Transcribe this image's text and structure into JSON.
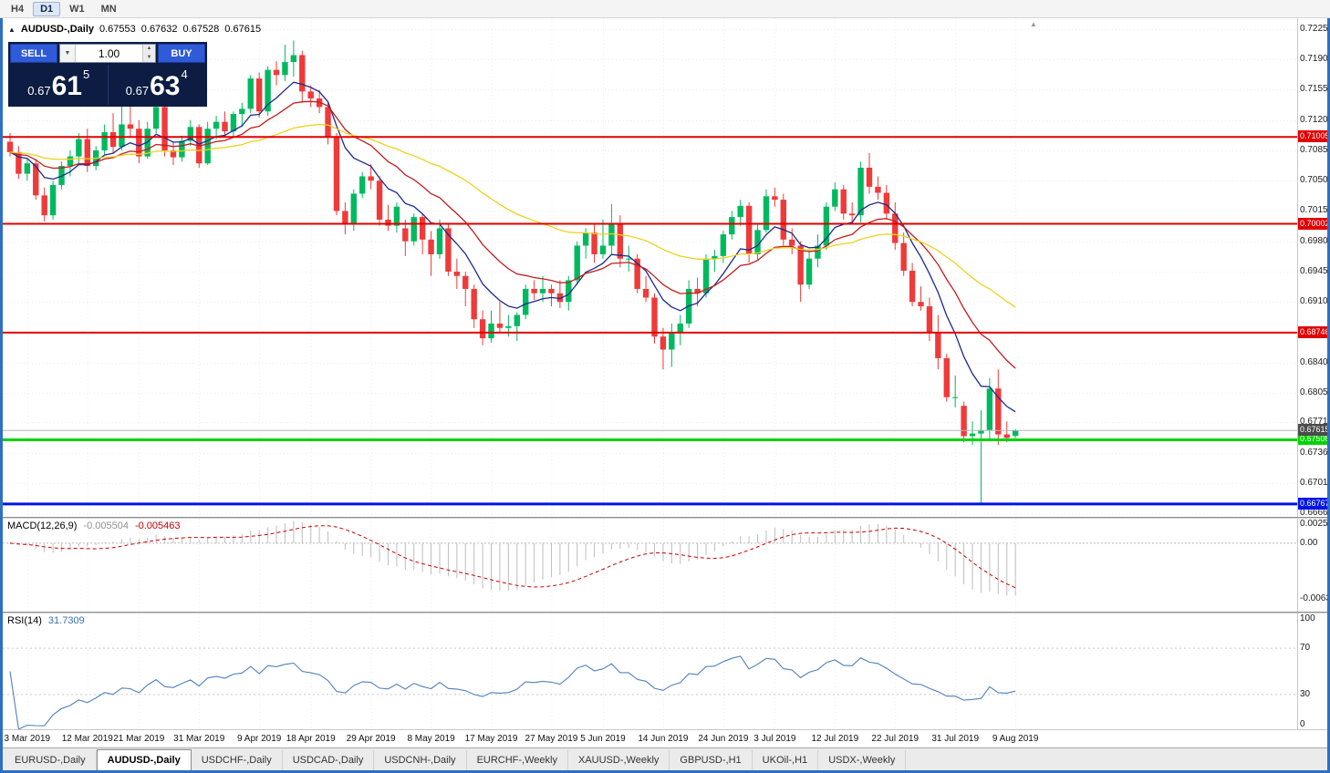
{
  "ui_colors": {
    "frame": "#2e6fc4",
    "trade_panel_bg": "#0c1c42",
    "button_blue": "#2f5bd8",
    "bull": "#00b95f",
    "bear": "#ef3a3a",
    "ma_fast": "#1b2a8f",
    "ma_mid": "#c21d1d",
    "ma_slow": "#efd11c"
  },
  "icons": {
    "collapse": "▲",
    "dropdown": "▼",
    "spin_up": "▲",
    "spin_down": "▼",
    "shift_marker": "▲"
  },
  "toolbar": {
    "timeframes": [
      "H4",
      "D1",
      "W1",
      "MN"
    ],
    "active": "D1"
  },
  "chart_header": {
    "symbol": "AUDUSD-,Daily",
    "open": "0.67553",
    "high": "0.67632",
    "low": "0.67528",
    "close": "0.67615"
  },
  "trade_panel": {
    "sell_label": "SELL",
    "buy_label": "BUY",
    "volume": "1.00",
    "sell_price": {
      "prefix": "0.67",
      "big": "61",
      "sup": "5"
    },
    "buy_price": {
      "prefix": "0.67",
      "big": "63",
      "sup": "4"
    }
  },
  "price_axis": {
    "labels": [
      "0.72250",
      "0.71900",
      "0.71550",
      "0.71200",
      "0.70850",
      "0.70500",
      "0.70150",
      "0.69800",
      "0.69450",
      "0.69100",
      "0.68750",
      "0.68400",
      "0.68050",
      "0.67710",
      "0.67360",
      "0.67010",
      "0.66660"
    ]
  },
  "current_price": {
    "value": 0.67615,
    "label": "0.67615",
    "line_color": "#b5b5b5",
    "badge_color": "#4b4b4b"
  },
  "levels": [
    {
      "name": "resistance-line-1",
      "price": 0.71005,
      "label": "0.71005",
      "color": "#e00000",
      "width": 2
    },
    {
      "name": "resistance-line-2",
      "price": 0.70002,
      "label": "0.70002",
      "color": "#e00000",
      "width": 2
    },
    {
      "name": "support-line-1",
      "price": 0.68746,
      "label": "0.68746",
      "color": "#e00000",
      "width": 2
    },
    {
      "name": "support-line-2",
      "price": 0.67508,
      "label": "0.67508",
      "color": "#00d400",
      "width": 3
    },
    {
      "name": "support-line-3",
      "price": 0.66767,
      "label": "0.66767",
      "color": "#0014e6",
      "width": 3
    }
  ],
  "macd": {
    "title": "MACD(12,26,9)",
    "value_main": "-0.005504",
    "value_signal": "-0.005463",
    "axis_labels": [
      "0.002574",
      "0.00",
      "-0.00632"
    ],
    "ylim": [
      -0.00777,
      0.00278
    ],
    "fast": 12,
    "slow": 26,
    "signal": 9,
    "hist_color": "#bdbdbd",
    "signal_color": "#cc0000"
  },
  "rsi": {
    "title": "RSI(14)",
    "value": "31.7309",
    "period": 14,
    "axis_labels": [
      "100",
      "70",
      "30",
      "0"
    ],
    "levels": [
      70,
      30
    ],
    "color": "#4f81bd"
  },
  "tabs": {
    "active_index": 1,
    "items": [
      "EURUSD-,Daily",
      "AUDUSD-,Daily",
      "USDCHF-,Daily",
      "USDCAD-,Daily",
      "USDCNH-,Daily",
      "EURCHF-,Weekly",
      "XAUUSD-,Weekly",
      "GBPUSD-,H1",
      "UKOil-,H1",
      "USDX-,Weekly"
    ]
  },
  "chart_data": {
    "type": "candlestick",
    "title": "AUDUSD-,Daily",
    "ylim": [
      0.66618,
      0.72376
    ],
    "grid": true,
    "colors": {
      "bull": "#00b95f",
      "bear": "#ef3a3a"
    },
    "ma": [
      {
        "name": "ma-fast-blue",
        "period": 8,
        "color": "#1b2a8f"
      },
      {
        "name": "ma-mid-red",
        "period": 17,
        "color": "#c21d1d"
      },
      {
        "name": "ma-slow-yellow",
        "period": 45,
        "color": "#efd11c"
      }
    ],
    "xticks": {
      "indices": [
        2,
        9,
        15,
        22,
        29,
        35,
        42,
        49,
        56,
        63,
        69,
        76,
        83,
        89,
        96,
        103,
        110,
        117
      ],
      "labels": [
        "3 Mar 2019",
        "12 Mar 2019",
        "21 Mar 2019",
        "31 Mar 2019",
        "9 Apr 2019",
        "18 Apr 2019",
        "29 Apr 2019",
        "8 May 2019",
        "17 May 2019",
        "27 May 2019",
        "5 Jun 2019",
        "14 Jun 2019",
        "24 Jun 2019",
        "3 Jul 2019",
        "12 Jul 2019",
        "22 Jul 2019",
        "31 Jul 2019",
        "9 Aug 2019"
      ]
    },
    "candles": [
      [
        "2019.03.01",
        0.7095,
        0.7105,
        0.7078,
        0.7083
      ],
      [
        "2019.03.04",
        0.7083,
        0.709,
        0.7052,
        0.7058
      ],
      [
        "2019.03.05",
        0.7058,
        0.7075,
        0.705,
        0.707
      ],
      [
        "2019.03.06",
        0.707,
        0.7075,
        0.7028,
        0.7033
      ],
      [
        "2019.03.07",
        0.7033,
        0.7042,
        0.7003,
        0.701
      ],
      [
        "2019.03.08",
        0.701,
        0.705,
        0.7005,
        0.7045
      ],
      [
        "2019.03.11",
        0.7045,
        0.7072,
        0.704,
        0.7067
      ],
      [
        "2019.03.12",
        0.7067,
        0.7085,
        0.7055,
        0.7078
      ],
      [
        "2019.03.13",
        0.7078,
        0.7105,
        0.707,
        0.7098
      ],
      [
        "2019.03.14",
        0.7098,
        0.711,
        0.706,
        0.7067
      ],
      [
        "2019.03.15",
        0.7067,
        0.709,
        0.7062,
        0.7085
      ],
      [
        "2019.03.18",
        0.7085,
        0.7115,
        0.708,
        0.7106
      ],
      [
        "2019.03.19",
        0.7106,
        0.7128,
        0.7082,
        0.7089
      ],
      [
        "2019.03.20",
        0.7089,
        0.715,
        0.7085,
        0.7115
      ],
      [
        "2019.03.21",
        0.7115,
        0.7168,
        0.71,
        0.711
      ],
      [
        "2019.03.22",
        0.711,
        0.712,
        0.707,
        0.7078
      ],
      [
        "2019.03.25",
        0.7078,
        0.7118,
        0.7075,
        0.711
      ],
      [
        "2019.03.26",
        0.711,
        0.7145,
        0.7105,
        0.7135
      ],
      [
        "2019.03.27",
        0.7135,
        0.714,
        0.7078,
        0.7085
      ],
      [
        "2019.03.28",
        0.7085,
        0.7095,
        0.7068,
        0.7077
      ],
      [
        "2019.03.29",
        0.7077,
        0.7102,
        0.7072,
        0.7096
      ],
      [
        "2019.04.01",
        0.7096,
        0.712,
        0.709,
        0.7112
      ],
      [
        "2019.04.02",
        0.7112,
        0.7115,
        0.7065,
        0.707
      ],
      [
        "2019.04.03",
        0.707,
        0.7118,
        0.7068,
        0.711
      ],
      [
        "2019.04.04",
        0.711,
        0.7125,
        0.7098,
        0.7118
      ],
      [
        "2019.04.05",
        0.7118,
        0.713,
        0.71,
        0.7107
      ],
      [
        "2019.04.08",
        0.7107,
        0.713,
        0.71,
        0.7127
      ],
      [
        "2019.04.09",
        0.7127,
        0.714,
        0.7112,
        0.7133
      ],
      [
        "2019.04.10",
        0.7133,
        0.7172,
        0.7128,
        0.7168
      ],
      [
        "2019.04.11",
        0.7168,
        0.7175,
        0.7123,
        0.713
      ],
      [
        "2019.04.12",
        0.713,
        0.7182,
        0.7125,
        0.7178
      ],
      [
        "2019.04.15",
        0.7178,
        0.7188,
        0.716,
        0.7172
      ],
      [
        "2019.04.16",
        0.7172,
        0.7207,
        0.7165,
        0.7187
      ],
      [
        "2019.04.17",
        0.7187,
        0.7212,
        0.717,
        0.7195
      ],
      [
        "2019.04.18",
        0.7195,
        0.72,
        0.714,
        0.7153
      ],
      [
        "2019.04.19",
        0.7153,
        0.716,
        0.7135,
        0.7145
      ],
      [
        "2019.04.22",
        0.7145,
        0.7155,
        0.7128,
        0.7135
      ],
      [
        "2019.04.23",
        0.7135,
        0.714,
        0.7092,
        0.7101
      ],
      [
        "2019.04.24",
        0.7101,
        0.7105,
        0.701,
        0.7015
      ],
      [
        "2019.04.25",
        0.7015,
        0.7025,
        0.6988,
        0.7
      ],
      [
        "2019.04.26",
        0.7,
        0.704,
        0.6992,
        0.7035
      ],
      [
        "2019.04.29",
        0.7035,
        0.706,
        0.703,
        0.7055
      ],
      [
        "2019.04.30",
        0.7055,
        0.7069,
        0.704,
        0.705
      ],
      [
        "2019.05.01",
        0.705,
        0.7055,
        0.6998,
        0.7005
      ],
      [
        "2019.05.02",
        0.7005,
        0.7022,
        0.6992,
        0.6998
      ],
      [
        "2019.05.03",
        0.6998,
        0.7025,
        0.699,
        0.702
      ],
      [
        "2019.05.06",
        0.6995,
        0.7005,
        0.6963,
        0.698
      ],
      [
        "2019.05.07",
        0.698,
        0.7012,
        0.6975,
        0.7008
      ],
      [
        "2019.05.08",
        0.7008,
        0.7012,
        0.6965,
        0.6982
      ],
      [
        "2019.05.09",
        0.6982,
        0.6992,
        0.694,
        0.6965
      ],
      [
        "2019.05.10",
        0.6965,
        0.7005,
        0.696,
        0.6995
      ],
      [
        "2019.05.13",
        0.6995,
        0.7,
        0.694,
        0.6945
      ],
      [
        "2019.05.14",
        0.6945,
        0.696,
        0.6925,
        0.694
      ],
      [
        "2019.05.15",
        0.694,
        0.6945,
        0.6905,
        0.6925
      ],
      [
        "2019.05.16",
        0.6925,
        0.693,
        0.688,
        0.689
      ],
      [
        "2019.05.17",
        0.689,
        0.69,
        0.686,
        0.6868
      ],
      [
        "2019.05.20",
        0.6868,
        0.69,
        0.6863,
        0.6885
      ],
      [
        "2019.05.21",
        0.6885,
        0.691,
        0.6875,
        0.688
      ],
      [
        "2019.05.22",
        0.688,
        0.6895,
        0.687,
        0.6882
      ],
      [
        "2019.05.23",
        0.6882,
        0.6898,
        0.6865,
        0.6895
      ],
      [
        "2019.05.24",
        0.6895,
        0.693,
        0.689,
        0.6925
      ],
      [
        "2019.05.27",
        0.6925,
        0.6935,
        0.6912,
        0.692
      ],
      [
        "2019.05.28",
        0.692,
        0.694,
        0.691,
        0.6925
      ],
      [
        "2019.05.29",
        0.6925,
        0.693,
        0.6905,
        0.692
      ],
      [
        "2019.05.30",
        0.692,
        0.6935,
        0.6903,
        0.691
      ],
      [
        "2019.05.31",
        0.691,
        0.694,
        0.69,
        0.6935
      ],
      [
        "2019.06.03",
        0.6935,
        0.698,
        0.693,
        0.6975
      ],
      [
        "2019.06.04",
        0.6975,
        0.6995,
        0.696,
        0.699
      ],
      [
        "2019.06.05",
        0.699,
        0.7,
        0.6955,
        0.6965
      ],
      [
        "2019.06.06",
        0.6965,
        0.7005,
        0.696,
        0.6975
      ],
      [
        "2019.06.07",
        0.6975,
        0.7023,
        0.6965,
        0.7
      ],
      [
        "2019.06.10",
        0.7,
        0.701,
        0.695,
        0.696
      ],
      [
        "2019.06.11",
        0.696,
        0.6975,
        0.6945,
        0.696
      ],
      [
        "2019.06.12",
        0.696,
        0.6965,
        0.692,
        0.6925
      ],
      [
        "2019.06.13",
        0.6925,
        0.694,
        0.691,
        0.6915
      ],
      [
        "2019.06.14",
        0.6915,
        0.692,
        0.6862,
        0.687
      ],
      [
        "2019.06.17",
        0.687,
        0.688,
        0.6832,
        0.6855
      ],
      [
        "2019.06.18",
        0.6855,
        0.6885,
        0.6835,
        0.6875
      ],
      [
        "2019.06.19",
        0.6875,
        0.6895,
        0.686,
        0.6885
      ],
      [
        "2019.06.20",
        0.6885,
        0.6935,
        0.688,
        0.6925
      ],
      [
        "2019.06.21",
        0.6925,
        0.6938,
        0.6905,
        0.692
      ],
      [
        "2019.06.24",
        0.692,
        0.6965,
        0.6915,
        0.696
      ],
      [
        "2019.06.25",
        0.696,
        0.697,
        0.6945,
        0.6963
      ],
      [
        "2019.06.26",
        0.6963,
        0.6992,
        0.6955,
        0.6988
      ],
      [
        "2019.06.27",
        0.6988,
        0.7015,
        0.6982,
        0.7008
      ],
      [
        "2019.06.28",
        0.7008,
        0.7028,
        0.6998,
        0.7021
      ],
      [
        "2019.07.01",
        0.7021,
        0.7025,
        0.6955,
        0.6965
      ],
      [
        "2019.07.02",
        0.6965,
        0.7,
        0.6958,
        0.6993
      ],
      [
        "2019.07.03",
        0.6993,
        0.704,
        0.699,
        0.7032
      ],
      [
        "2019.07.04",
        0.7032,
        0.7042,
        0.702,
        0.7028
      ],
      [
        "2019.07.05",
        0.7028,
        0.7035,
        0.6975,
        0.6982
      ],
      [
        "2019.07.08",
        0.6982,
        0.6995,
        0.6965,
        0.6975
      ],
      [
        "2019.07.09",
        0.6975,
        0.698,
        0.691,
        0.693
      ],
      [
        "2019.07.10",
        0.693,
        0.697,
        0.6925,
        0.696
      ],
      [
        "2019.07.11",
        0.696,
        0.6988,
        0.695,
        0.6975
      ],
      [
        "2019.07.12",
        0.6975,
        0.7025,
        0.697,
        0.702
      ],
      [
        "2019.07.15",
        0.702,
        0.7048,
        0.7015,
        0.704
      ],
      [
        "2019.07.16",
        0.704,
        0.7045,
        0.7005,
        0.7012
      ],
      [
        "2019.07.17",
        0.7012,
        0.7025,
        0.7,
        0.701
      ],
      [
        "2019.07.18",
        0.701,
        0.7072,
        0.7002,
        0.7065
      ],
      [
        "2019.07.19",
        0.7065,
        0.7082,
        0.7035,
        0.7043
      ],
      [
        "2019.07.22",
        0.7043,
        0.7055,
        0.7028,
        0.7036
      ],
      [
        "2019.07.23",
        0.7036,
        0.7045,
        0.7005,
        0.7012
      ],
      [
        "2019.07.24",
        0.7012,
        0.7025,
        0.697,
        0.6978
      ],
      [
        "2019.07.25",
        0.6978,
        0.699,
        0.694,
        0.6946
      ],
      [
        "2019.07.26",
        0.6946,
        0.6955,
        0.6905,
        0.691
      ],
      [
        "2019.07.29",
        0.691,
        0.6928,
        0.69,
        0.6905
      ],
      [
        "2019.07.30",
        0.6905,
        0.6915,
        0.6865,
        0.6875
      ],
      [
        "2019.07.31",
        0.6875,
        0.6895,
        0.6832,
        0.6845
      ],
      [
        "2019.08.01",
        0.6845,
        0.685,
        0.6795,
        0.68
      ],
      [
        "2019.08.02",
        0.68,
        0.6825,
        0.6788,
        0.68
      ],
      [
        "2019.08.05",
        0.679,
        0.6795,
        0.6748,
        0.6755
      ],
      [
        "2019.08.06",
        0.6755,
        0.6772,
        0.6745,
        0.6758
      ],
      [
        "2019.08.07",
        0.6758,
        0.6785,
        0.6677,
        0.6762
      ],
      [
        "2019.08.08",
        0.6762,
        0.6822,
        0.6752,
        0.681
      ],
      [
        "2019.08.09",
        0.681,
        0.6832,
        0.6745,
        0.6757
      ],
      [
        "2019.08.12",
        0.6757,
        0.6772,
        0.6748,
        0.6753
      ],
      [
        "2019.08.13",
        0.67553,
        0.67632,
        0.67528,
        0.67615
      ]
    ]
  }
}
